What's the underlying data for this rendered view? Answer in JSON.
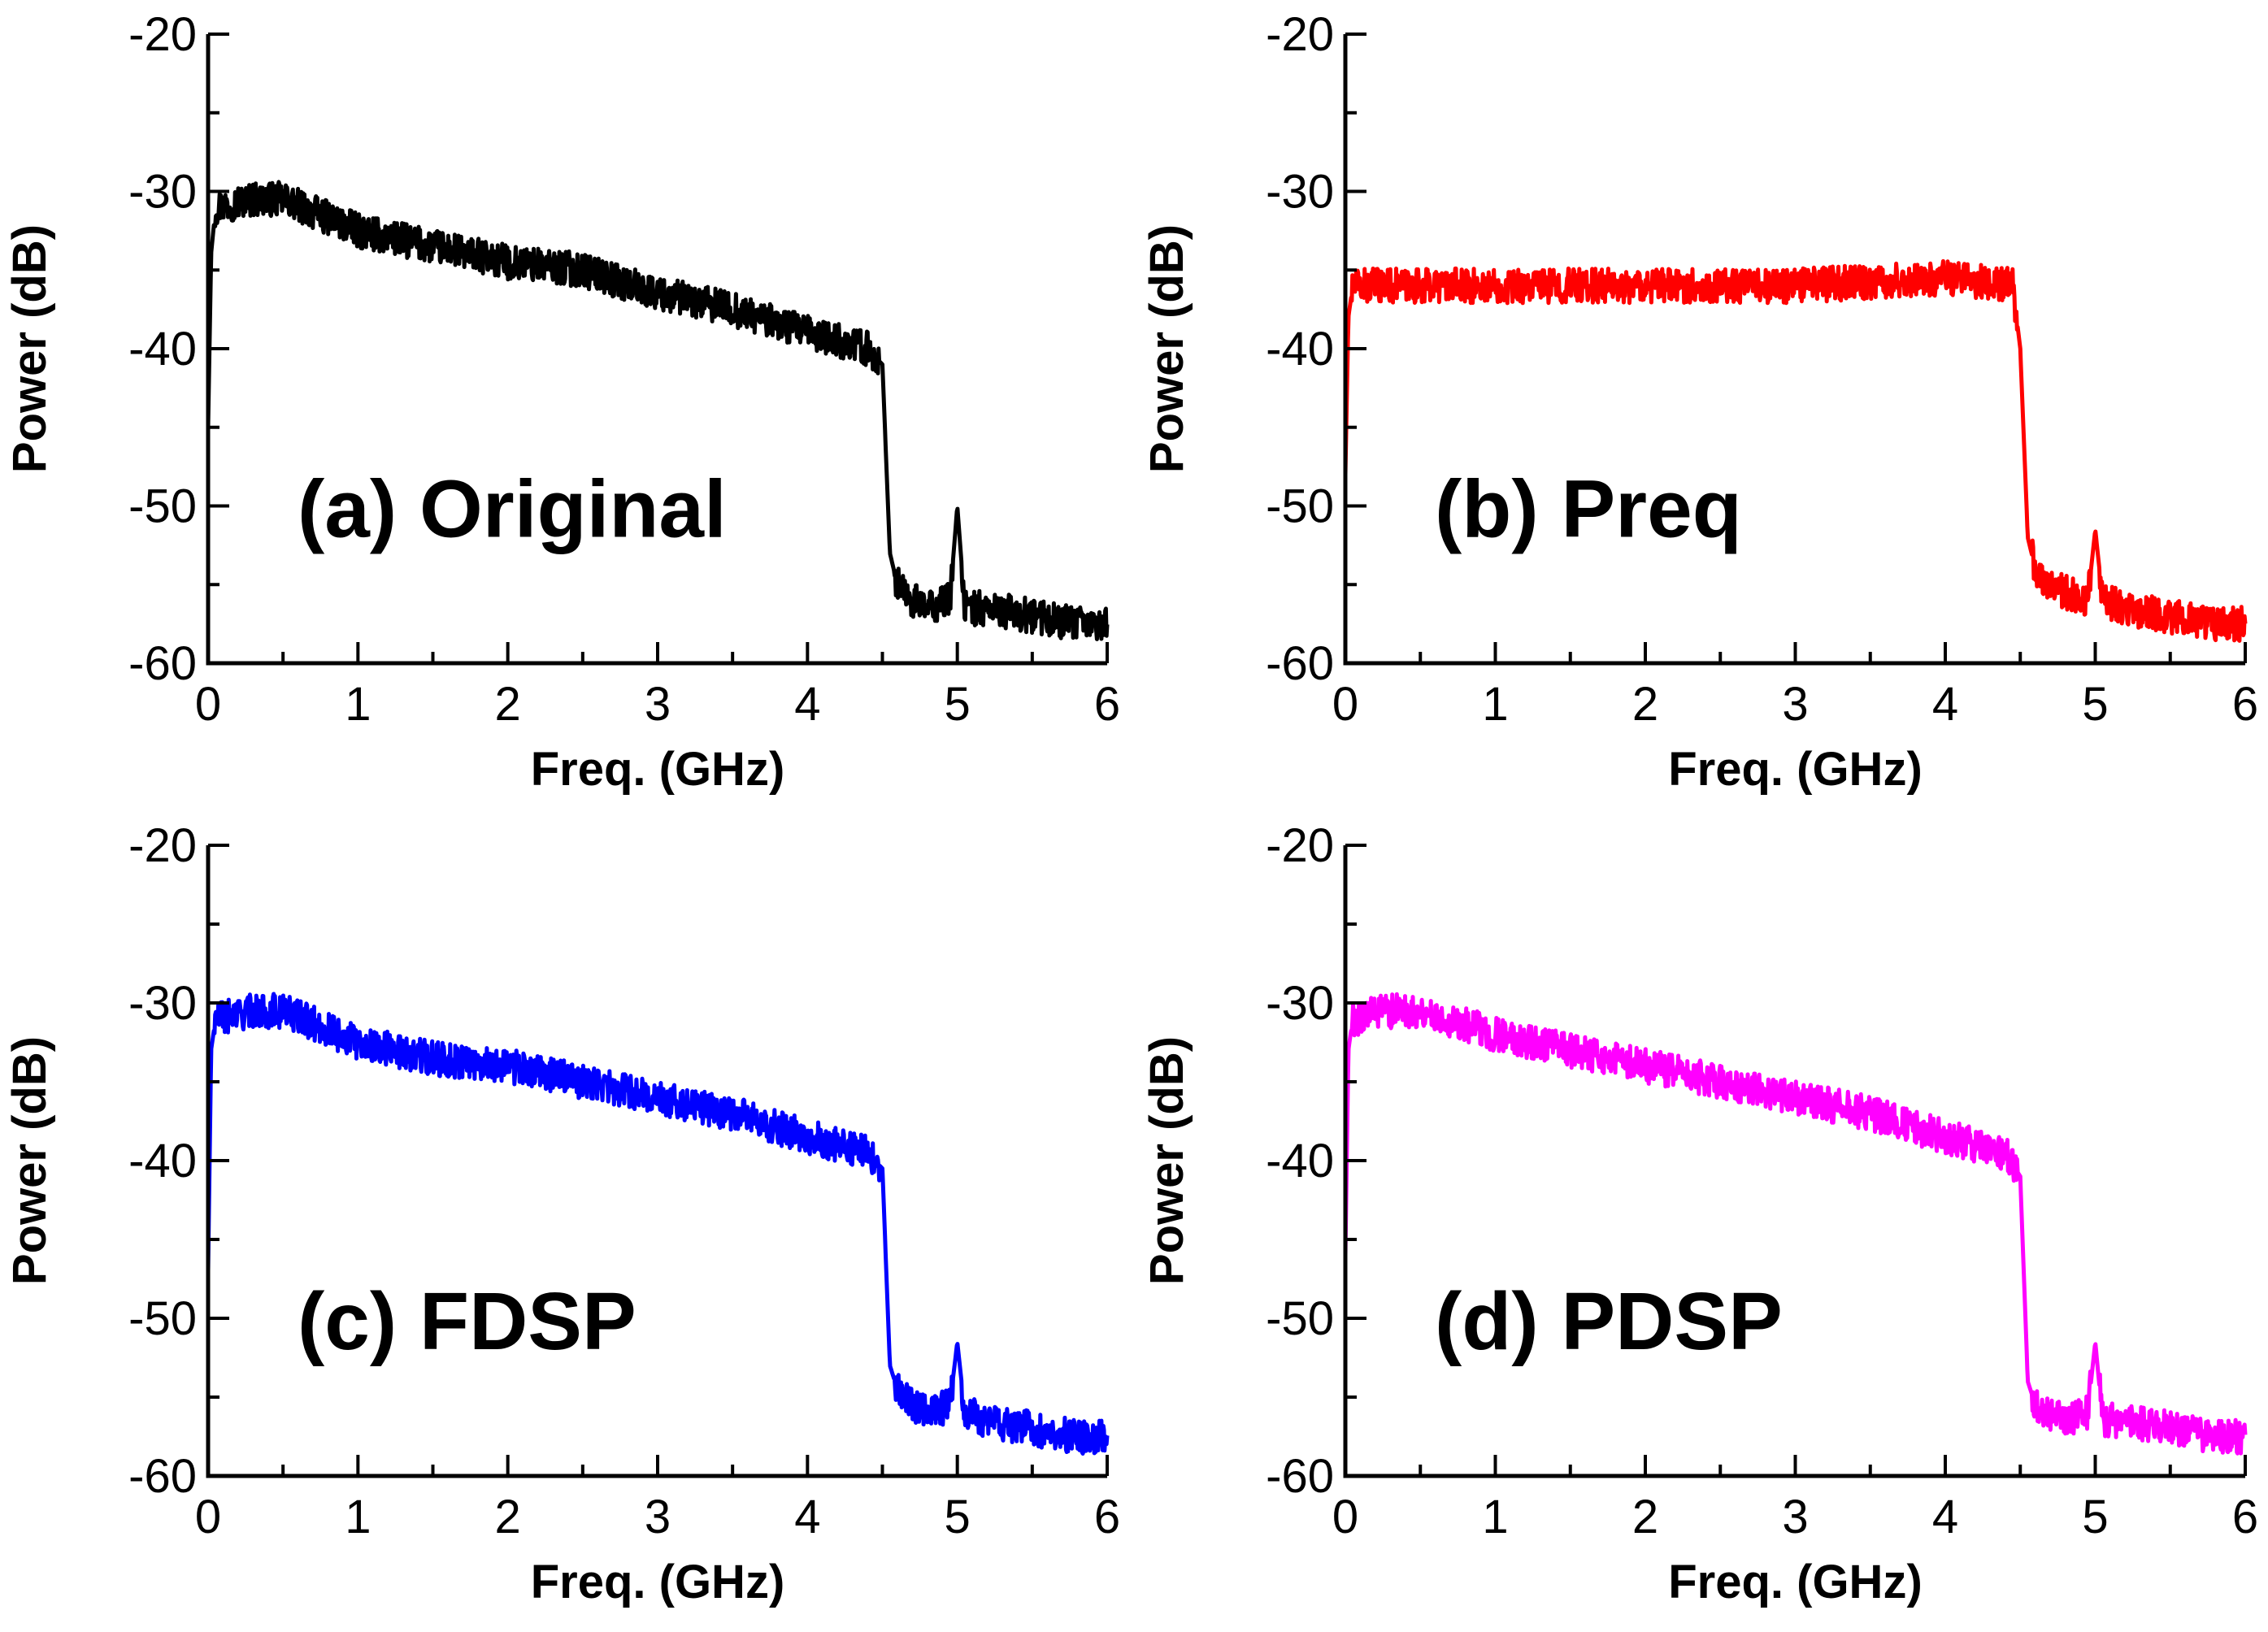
{
  "chart_data": [
    {
      "type": "line",
      "panel_label": "(a) Original",
      "color": "#000000",
      "xlabel": "Freq. (GHz)",
      "ylabel": "Power (dB)",
      "xlim": [
        0,
        6
      ],
      "ylim": [
        -60,
        -20
      ],
      "xticks": [
        "0",
        "1",
        "2",
        "3",
        "4",
        "5",
        "6"
      ],
      "yticks": [
        "-20",
        "-30",
        "-40",
        "-50",
        "-60"
      ],
      "series": [
        {
          "name": "Original",
          "x": [
            0,
            0.02,
            0.05,
            0.3,
            0.5,
            1.0,
            1.5,
            2.0,
            2.5,
            3.0,
            3.5,
            4.0,
            4.4,
            4.5,
            4.55,
            4.6,
            4.7,
            4.8,
            4.95,
            5.0,
            5.05,
            5.2,
            5.5,
            5.8,
            6.0
          ],
          "values": [
            -45,
            -34,
            -31,
            -30.5,
            -30.5,
            -32.5,
            -33.5,
            -34.5,
            -35,
            -36.5,
            -37.5,
            -39,
            -40,
            -41,
            -53,
            -55,
            -56,
            -56.5,
            -56,
            -50,
            -56.5,
            -56.5,
            -57,
            -57.5,
            -57.5
          ]
        }
      ]
    },
    {
      "type": "line",
      "panel_label": "(b) Preq",
      "color": "#ff0000",
      "xlabel": "Freq. (GHz)",
      "ylabel": "Power (dB)",
      "xlim": [
        0,
        6
      ],
      "ylim": [
        -60,
        -20
      ],
      "xticks": [
        "0",
        "1",
        "2",
        "3",
        "4",
        "5",
        "6"
      ],
      "yticks": [
        "-20",
        "-30",
        "-40",
        "-50",
        "-60"
      ],
      "series": [
        {
          "name": "Preq",
          "x": [
            0,
            0.02,
            0.05,
            1.0,
            2.0,
            3.0,
            4.0,
            4.45,
            4.5,
            4.55,
            4.6,
            4.7,
            4.8,
            4.95,
            5.0,
            5.05,
            5.2,
            5.5,
            5.8,
            6.0
          ],
          "values": [
            -48,
            -38,
            -36,
            -36,
            -36,
            -36,
            -35.5,
            -36,
            -40,
            -52,
            -54,
            -55,
            -55.5,
            -56,
            -51.5,
            -56,
            -56.5,
            -57,
            -57.5,
            -57.5
          ]
        }
      ]
    },
    {
      "type": "line",
      "panel_label": "(c) FDSP",
      "color": "#0000ff",
      "xlabel": "Freq. (GHz)",
      "ylabel": "Power (dB)",
      "xlim": [
        0,
        6
      ],
      "ylim": [
        -60,
        -20
      ],
      "xticks": [
        "0",
        "1",
        "2",
        "3",
        "4",
        "5",
        "6"
      ],
      "yticks": [
        "-20",
        "-30",
        "-40",
        "-50",
        "-60"
      ],
      "series": [
        {
          "name": "FDSP",
          "x": [
            0,
            0.02,
            0.05,
            0.3,
            0.5,
            1.0,
            1.5,
            2.0,
            2.5,
            3.0,
            3.5,
            4.0,
            4.4,
            4.5,
            4.55,
            4.6,
            4.7,
            4.8,
            4.95,
            5.0,
            5.05,
            5.2,
            5.5,
            5.8,
            6.0
          ],
          "values": [
            -47,
            -33,
            -31,
            -30.5,
            -30.5,
            -32.5,
            -33.5,
            -34,
            -35,
            -36,
            -37,
            -38.5,
            -39.5,
            -40.5,
            -53,
            -54.5,
            -55.5,
            -56,
            -55.5,
            -51.5,
            -56,
            -56.5,
            -57,
            -57.5,
            -57.5
          ]
        }
      ]
    },
    {
      "type": "line",
      "panel_label": "(d) PDSP",
      "color": "#ff00ff",
      "xlabel": "Freq. (GHz)",
      "ylabel": "Power (dB)",
      "xlim": [
        0,
        6
      ],
      "ylim": [
        -60,
        -20
      ],
      "xticks": [
        "0",
        "1",
        "2",
        "3",
        "4",
        "5",
        "6"
      ],
      "yticks": [
        "-20",
        "-30",
        "-40",
        "-50",
        "-60"
      ],
      "series": [
        {
          "name": "PDSP",
          "x": [
            0,
            0.02,
            0.05,
            0.3,
            0.5,
            1.0,
            1.5,
            2.0,
            2.5,
            3.0,
            3.5,
            4.0,
            4.4,
            4.5,
            4.55,
            4.6,
            4.7,
            4.8,
            4.95,
            5.0,
            5.05,
            5.2,
            5.5,
            5.8,
            6.0
          ],
          "values": [
            -46,
            -33,
            -31,
            -30.5,
            -30.5,
            -32,
            -33,
            -34,
            -35,
            -36,
            -37,
            -38.5,
            -39.5,
            -41,
            -54,
            -55.5,
            -56,
            -56.5,
            -56,
            -51.5,
            -56.5,
            -56.5,
            -57,
            -57.5,
            -57.5
          ]
        }
      ]
    }
  ]
}
